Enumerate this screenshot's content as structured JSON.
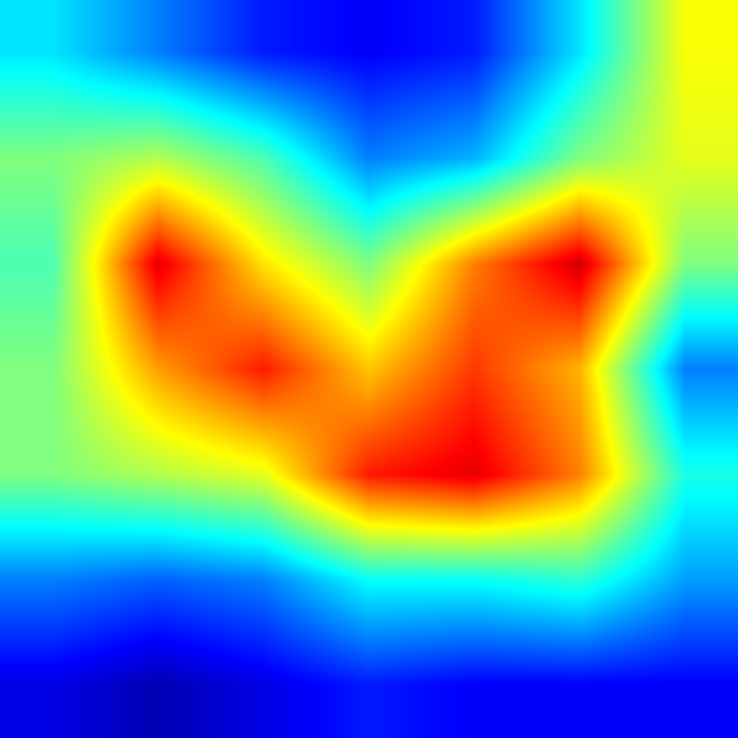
{
  "chart_data": {
    "type": "heatmap",
    "colormap": "jet",
    "value_range": [
      0,
      1
    ],
    "title": "",
    "xlabel": "",
    "ylabel": "",
    "axes_visible": false,
    "grid": false,
    "legend": "none",
    "rows": 7,
    "cols": 7,
    "values": [
      [
        0.35,
        0.25,
        0.15,
        0.12,
        0.15,
        0.35,
        0.62
      ],
      [
        0.5,
        0.55,
        0.45,
        0.25,
        0.3,
        0.5,
        0.6
      ],
      [
        0.45,
        0.9,
        0.65,
        0.5,
        0.75,
        0.92,
        0.5
      ],
      [
        0.5,
        0.72,
        0.85,
        0.68,
        0.82,
        0.7,
        0.25
      ],
      [
        0.5,
        0.55,
        0.6,
        0.85,
        0.9,
        0.75,
        0.4
      ],
      [
        0.25,
        0.22,
        0.25,
        0.38,
        0.38,
        0.42,
        0.28
      ],
      [
        0.1,
        0.05,
        0.1,
        0.15,
        0.12,
        0.12,
        0.12
      ]
    ]
  }
}
